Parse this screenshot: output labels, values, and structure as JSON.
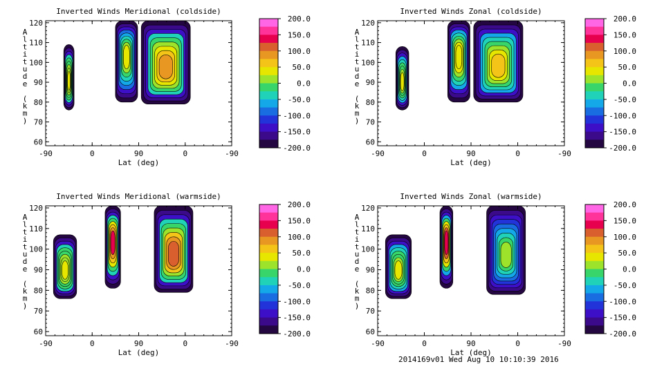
{
  "footer": "2014169v01 Wed Aug 10 10:10:39 2016",
  "colorbar": {
    "labels": [
      "200.0",
      "150.0",
      "100.0",
      "50.0",
      "0.0",
      "-50.0",
      "-100.0",
      "-150.0",
      "-200.0"
    ],
    "values": [
      200,
      150,
      100,
      50,
      0,
      -50,
      -100,
      -150,
      -200
    ],
    "colors": [
      "#ff66e6",
      "#ff3399",
      "#e6004d",
      "#d9602e",
      "#e89722",
      "#f4c518",
      "#e6e600",
      "#9ee32b",
      "#38d66a",
      "#20d3b8",
      "#15a8e8",
      "#1a6de0",
      "#2233d9",
      "#3d10c8",
      "#3a0a8a",
      "#240640"
    ]
  },
  "chart_data": [
    {
      "type": "heatmap",
      "title": "Inverted Winds Meridional (coldside)",
      "xlabel": "Lat (deg)",
      "ylabel": "Altitude (km)",
      "xticks": [
        "-90",
        "0",
        "90",
        "0",
        "-90"
      ],
      "yticks": [
        "60",
        "70",
        "80",
        "90",
        "100",
        "110",
        "120"
      ],
      "ylim": [
        58,
        121
      ],
      "zlim": [
        -200,
        200
      ],
      "blobs": [
        {
          "x": [
            -55,
            -35
          ],
          "y": [
            76,
            109
          ],
          "peak_range": [
            -40,
            40
          ]
        },
        {
          "x": [
            45,
            88
          ],
          "y": [
            80,
            121
          ],
          "peak_range": [
            -90,
            30
          ]
        },
        {
          "x": [
            95,
            190
          ],
          "y": [
            79,
            121
          ],
          "peak_range": [
            -40,
            80
          ]
        }
      ]
    },
    {
      "type": "heatmap",
      "title": "Inverted Winds Zonal (coldside)",
      "xlabel": "Lat (deg)",
      "ylabel": "Altitude (km)",
      "xticks": [
        "-90",
        "0",
        "90",
        "0",
        "-90"
      ],
      "yticks": [
        "60",
        "70",
        "80",
        "90",
        "100",
        "110",
        "120"
      ],
      "ylim": [
        58,
        121
      ],
      "zlim": [
        -200,
        200
      ],
      "blobs": [
        {
          "x": [
            -55,
            -30
          ],
          "y": [
            76,
            108
          ],
          "peak_range": [
            -60,
            30
          ]
        },
        {
          "x": [
            45,
            88
          ],
          "y": [
            80,
            121
          ],
          "peak_range": [
            -50,
            50
          ]
        },
        {
          "x": [
            95,
            190
          ],
          "y": [
            80,
            121
          ],
          "peak_range": [
            -70,
            70
          ]
        }
      ]
    },
    {
      "type": "heatmap",
      "title": "Inverted Winds Meridional (warmside)",
      "xlabel": "Lat (deg)",
      "ylabel": "Altitude (km)",
      "xticks": [
        "-90",
        "0",
        "90",
        "0",
        "-90"
      ],
      "yticks": [
        "60",
        "70",
        "80",
        "90",
        "100",
        "110",
        "120"
      ],
      "ylim": [
        58,
        121
      ],
      "zlim": [
        -200,
        200
      ],
      "blobs": [
        {
          "x": [
            -75,
            -30
          ],
          "y": [
            76,
            107
          ],
          "peak_range": [
            -40,
            40
          ]
        },
        {
          "x": [
            25,
            55
          ],
          "y": [
            81,
            121
          ],
          "peak_range": [
            -40,
            130
          ]
        },
        {
          "x": [
            120,
            195
          ],
          "y": [
            79,
            121
          ],
          "peak_range": [
            -40,
            120
          ]
        }
      ]
    },
    {
      "type": "heatmap",
      "title": "Inverted Winds Zonal (warmside)",
      "xlabel": "Lat (deg)",
      "ylabel": "Altitude (km)",
      "xticks": [
        "-90",
        "0",
        "90",
        "0",
        "-90"
      ],
      "yticks": [
        "60",
        "70",
        "80",
        "90",
        "100",
        "110",
        "120"
      ],
      "ylim": [
        58,
        121
      ],
      "zlim": [
        -200,
        200
      ],
      "blobs": [
        {
          "x": [
            -75,
            -25
          ],
          "y": [
            76,
            107
          ],
          "peak_range": [
            -60,
            40
          ]
        },
        {
          "x": [
            30,
            55
          ],
          "y": [
            81,
            121
          ],
          "peak_range": [
            -50,
            150
          ]
        },
        {
          "x": [
            120,
            195
          ],
          "y": [
            78,
            121
          ],
          "peak_range": [
            -110,
            20
          ]
        }
      ]
    }
  ]
}
